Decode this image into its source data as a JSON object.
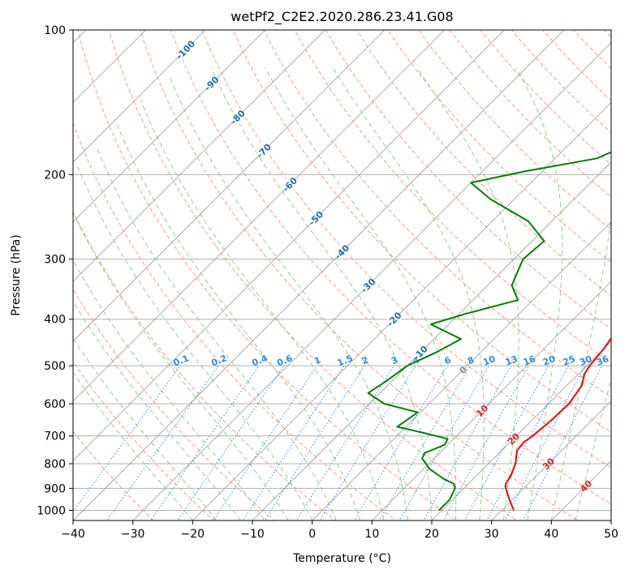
{
  "chart_data": {
    "type": "line",
    "subtype": "skew-t log-p diagram",
    "title": "wetPf2_C2E2.2020.286.23.41.G08",
    "xlabel": "Temperature (°C)",
    "ylabel": "Pressure (hPa)",
    "xlim": [
      -40,
      50
    ],
    "ylim": [
      1050,
      100
    ],
    "y_scale": "log",
    "x_ticks": [
      -40,
      -30,
      -20,
      -10,
      0,
      10,
      20,
      30,
      40,
      50
    ],
    "y_ticks": [
      100,
      200,
      300,
      400,
      500,
      600,
      700,
      800,
      900,
      1000
    ],
    "grid": true,
    "colors": {
      "temperature": "#ff0000",
      "dewpoint": "#008000",
      "isotherm_grid": "#999999",
      "dry_adiabat": "#ff9a7a",
      "moist_adiabat": "#8fcf8f",
      "mixing_ratio": "#2a8de6",
      "isotherm_label": "#1f6fa8",
      "dry_adiabat_label": "#d62728",
      "zero_label": "#888888"
    },
    "series": [
      {
        "role": "temperature",
        "points": [
          {
            "p": 1000,
            "t": 32.0
          },
          {
            "p": 950,
            "t": 29.5
          },
          {
            "p": 900,
            "t": 27.0
          },
          {
            "p": 880,
            "t": 26.2
          },
          {
            "p": 850,
            "t": 25.8
          },
          {
            "p": 800,
            "t": 24.5
          },
          {
            "p": 750,
            "t": 22.5
          },
          {
            "p": 720,
            "t": 22.3
          },
          {
            "p": 700,
            "t": 22.7
          },
          {
            "p": 650,
            "t": 23.2
          },
          {
            "p": 600,
            "t": 23.4
          },
          {
            "p": 550,
            "t": 22.5
          },
          {
            "p": 520,
            "t": 21.0
          },
          {
            "p": 500,
            "t": 20.5
          },
          {
            "p": 460,
            "t": 20.0
          },
          {
            "p": 400,
            "t": 18.5
          },
          {
            "p": 350,
            "t": 17.5
          },
          {
            "p": 300,
            "t": 14.5
          },
          {
            "p": 250,
            "t": 10.5
          },
          {
            "p": 200,
            "t": 5.5
          },
          {
            "p": 160,
            "t": 1.5
          },
          {
            "p": 130,
            "t": 0.0
          },
          {
            "p": 115,
            "t": -1.5
          },
          {
            "p": 105,
            "t": -2.0
          },
          {
            "p": 100,
            "t": -2.0
          }
        ]
      },
      {
        "role": "dewpoint",
        "points": [
          {
            "p": 1000,
            "t": 19.5
          },
          {
            "p": 950,
            "t": 19.5
          },
          {
            "p": 900,
            "t": 18.5
          },
          {
            "p": 880,
            "t": 17.5
          },
          {
            "p": 860,
            "t": 15.0
          },
          {
            "p": 820,
            "t": 11.0
          },
          {
            "p": 780,
            "t": 8.0
          },
          {
            "p": 760,
            "t": 7.5
          },
          {
            "p": 730,
            "t": 9.5
          },
          {
            "p": 710,
            "t": 9.0
          },
          {
            "p": 690,
            "t": 4.0
          },
          {
            "p": 670,
            "t": -1.5
          },
          {
            "p": 650,
            "t": -1.0
          },
          {
            "p": 625,
            "t": -0.5
          },
          {
            "p": 600,
            "t": -7.5
          },
          {
            "p": 570,
            "t": -12.0
          },
          {
            "p": 540,
            "t": -11.0
          },
          {
            "p": 500,
            "t": -10.0
          },
          {
            "p": 470,
            "t": -7.5
          },
          {
            "p": 440,
            "t": -5.5
          },
          {
            "p": 410,
            "t": -13.0
          },
          {
            "p": 390,
            "t": -9.0
          },
          {
            "p": 365,
            "t": -2.5
          },
          {
            "p": 340,
            "t": -6.0
          },
          {
            "p": 300,
            "t": -8.5
          },
          {
            "p": 275,
            "t": -8.0
          },
          {
            "p": 250,
            "t": -14.0
          },
          {
            "p": 225,
            "t": -24.0
          },
          {
            "p": 208,
            "t": -30.0
          },
          {
            "p": 197,
            "t": -23.0
          },
          {
            "p": 185,
            "t": -13.0
          },
          {
            "p": 165,
            "t": -8.0
          },
          {
            "p": 145,
            "t": -6.0
          },
          {
            "p": 125,
            "t": -5.5
          },
          {
            "p": 110,
            "t": -3.5
          },
          {
            "p": 100,
            "t": -2.3
          }
        ]
      }
    ],
    "isotherm_labels": [
      "-100",
      "-90",
      "-80",
      "-70",
      "-60",
      "-50",
      "-40",
      "-30",
      "-20",
      "-10"
    ],
    "isotherm_label_values": [
      -100,
      -90,
      -80,
      -70,
      -60,
      -50,
      -40,
      -30,
      -20,
      -10
    ],
    "zero_isotherm_label": "0",
    "dry_adiabat_labels": [
      "10",
      "20",
      "30",
      "40"
    ],
    "dry_adiabat_label_values": [
      10,
      20,
      30,
      40
    ],
    "mixing_ratio_labels": [
      "0.1",
      "0.2",
      "0.4",
      "0.6",
      "1",
      "1.5",
      "2",
      "3",
      "4",
      "6",
      "8",
      "10",
      "13",
      "16",
      "20",
      "25",
      "30",
      "36"
    ],
    "mixing_ratio_values": [
      0.1,
      0.2,
      0.4,
      0.6,
      1,
      1.5,
      2,
      3,
      4,
      6,
      8,
      10,
      13,
      16,
      20,
      25,
      30,
      36
    ]
  }
}
